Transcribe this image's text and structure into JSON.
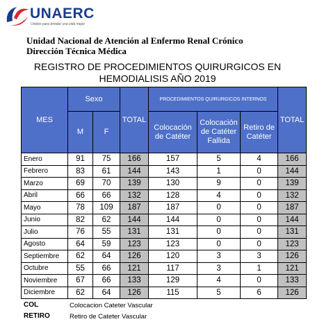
{
  "logo": {
    "name": "UNAERC",
    "tagline": "Unidos para brindar una vida mejor"
  },
  "header": {
    "line1": "Unidad Nacional de Atención al Enfermo Renal Crónico",
    "line2": "Dirección Técnica Médica"
  },
  "title": {
    "line1": "REGISTRO  DE PROCEDIMIENTOS QUIRURGICOS EN",
    "line2": "HEMODIALISIS AÑO 2019"
  },
  "table": {
    "headers": {
      "mes": "MES",
      "sexo": "Sexo",
      "m": "M",
      "f": "F",
      "total1": "TOTAL",
      "procedimientos": "PROCEDIMIENTOS QUIRURGICOS INTERNOS",
      "col": "Colocación de Catéter",
      "fallida": "Colocación de Catéter Fallida",
      "retiro": "Retiro de Catéter",
      "total2": "TOTAL"
    },
    "rows": [
      [
        "Enero",
        91,
        75,
        166,
        157,
        5,
        4,
        166
      ],
      [
        "Febrero",
        83,
        61,
        144,
        143,
        1,
        0,
        144
      ],
      [
        "Marzo",
        69,
        70,
        139,
        130,
        9,
        0,
        139
      ],
      [
        "Abril",
        66,
        66,
        132,
        128,
        4,
        0,
        132
      ],
      [
        "Mayo",
        78,
        109,
        187,
        187,
        0,
        0,
        187
      ],
      [
        "Junio",
        82,
        62,
        144,
        144,
        0,
        0,
        144
      ],
      [
        "Julio",
        76,
        55,
        131,
        131,
        0,
        0,
        131
      ],
      [
        "Agosto",
        64,
        59,
        123,
        123,
        0,
        0,
        123
      ],
      [
        "Septiembre",
        62,
        64,
        126,
        120,
        3,
        3,
        126
      ],
      [
        "Octubre",
        55,
        66,
        121,
        117,
        3,
        1,
        121
      ],
      [
        "Noviembre",
        67,
        66,
        133,
        129,
        4,
        0,
        133
      ],
      [
        "Diciembre",
        62,
        64,
        126,
        115,
        5,
        6,
        126
      ]
    ]
  },
  "legend": [
    {
      "abbr": "COL",
      "text": "Colocacion Cateter Vascular"
    },
    {
      "abbr": "RETIRO",
      "text": "Retiro de Cateter Vascular"
    }
  ]
}
